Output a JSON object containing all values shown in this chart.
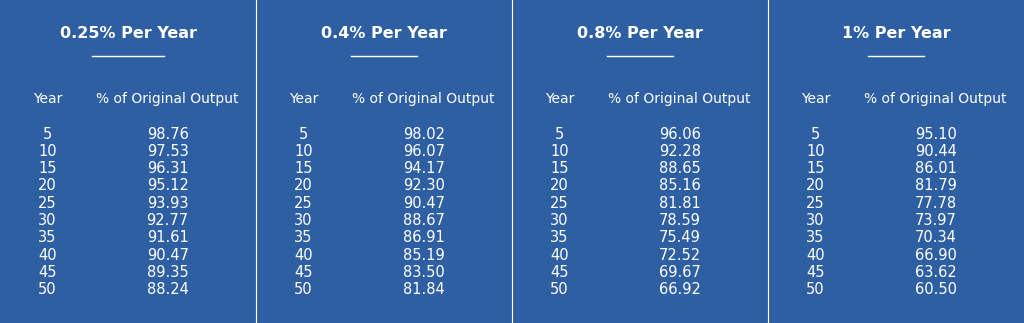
{
  "background_color": "#2E5FA3",
  "text_color": "#FFFFFF",
  "divider_color": "#FFFFFF",
  "tables": [
    {
      "title": "0.25% Per Year",
      "years": [
        5,
        10,
        15,
        20,
        25,
        30,
        35,
        40,
        45,
        50
      ],
      "values": [
        98.76,
        97.53,
        96.31,
        95.12,
        93.93,
        92.77,
        91.61,
        90.47,
        89.35,
        88.24
      ]
    },
    {
      "title": "0.4% Per Year",
      "years": [
        5,
        10,
        15,
        20,
        25,
        30,
        35,
        40,
        45,
        50
      ],
      "values": [
        98.02,
        96.07,
        94.17,
        92.3,
        90.47,
        88.67,
        86.91,
        85.19,
        83.5,
        81.84
      ]
    },
    {
      "title": "0.8% Per Year",
      "years": [
        5,
        10,
        15,
        20,
        25,
        30,
        35,
        40,
        45,
        50
      ],
      "values": [
        96.06,
        92.28,
        88.65,
        85.16,
        81.81,
        78.59,
        75.49,
        72.52,
        69.67,
        66.92
      ]
    },
    {
      "title": "1% Per Year",
      "years": [
        5,
        10,
        15,
        20,
        25,
        30,
        35,
        40,
        45,
        50
      ],
      "values": [
        95.1,
        90.44,
        86.01,
        81.79,
        77.78,
        73.97,
        70.34,
        66.9,
        63.62,
        60.5
      ]
    }
  ],
  "col_header": "% of Original Output",
  "row_header": "Year",
  "title_fontsize": 11.5,
  "header_fontsize": 10,
  "data_fontsize": 10.5,
  "fig_width": 10.24,
  "fig_height": 3.23,
  "dpi": 100
}
